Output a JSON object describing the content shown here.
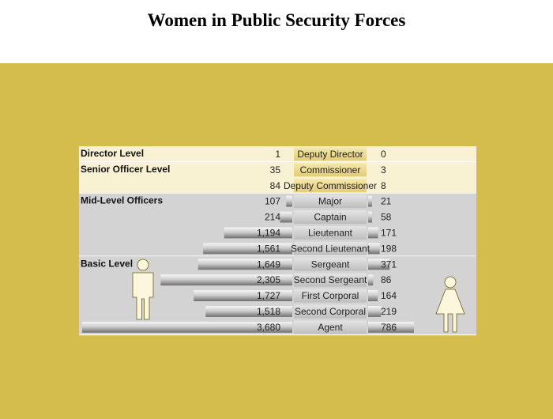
{
  "title": "Women in Public Security Forces",
  "colors": {
    "page_background": "#ffffff",
    "backdrop": "#d4bd4c",
    "cream_band": "#f8f1d2",
    "grey_band": "#d3d3d3",
    "bar_light": "#f4f4f4",
    "bar_dark": "#7d7d7d",
    "rank_box_gold": "#ecd98e",
    "rank_box_grey": "#cfcfcf",
    "figure": "#fcf6dc"
  },
  "chart_data": {
    "type": "bar",
    "layout": "butterfly",
    "series": [
      {
        "name": "",
        "side": "left",
        "icon": "man-icon"
      },
      {
        "name": "",
        "side": "right",
        "icon": "woman-icon"
      }
    ],
    "groups": [
      {
        "label": "Director Level",
        "band": "cream",
        "ranks": [
          {
            "rank": "Deputy Director",
            "men": 1,
            "women": 0
          }
        ]
      },
      {
        "label": "Senior Officer Level",
        "band": "cream",
        "ranks": [
          {
            "rank": "Commissioner",
            "men": 35,
            "women": 3
          },
          {
            "rank": "Deputy Commissioner",
            "men": 84,
            "women": 8
          }
        ]
      },
      {
        "label": "Mid-Level Officers",
        "band": "grey",
        "ranks": [
          {
            "rank": "Major",
            "men": 107,
            "women": 21
          },
          {
            "rank": "Captain",
            "men": 214,
            "women": 58
          },
          {
            "rank": "Lieutenant",
            "men": 1194,
            "women": 171
          },
          {
            "rank": "Second Lieutenant",
            "men": 1561,
            "women": 198
          }
        ]
      },
      {
        "label": "Basic Level",
        "band": "grey",
        "ranks": [
          {
            "rank": "Sergeant",
            "men": 1649,
            "women": 371
          },
          {
            "rank": "Second Sergeant",
            "men": 2305,
            "women": 86
          },
          {
            "rank": "First Corporal",
            "men": 1727,
            "women": 164
          },
          {
            "rank": "Second Corporal",
            "men": 1518,
            "women": 219
          },
          {
            "rank": "Agent",
            "men": 3680,
            "women": 786
          }
        ]
      }
    ],
    "display_values": {
      "men": [
        "1",
        "35",
        "84",
        "107",
        "214",
        "1,194",
        "1,561",
        "1,649",
        "2,305",
        "1,727",
        "1,518",
        "3,680"
      ],
      "women": [
        "0",
        "3",
        "8",
        "21",
        "58",
        "171",
        "198",
        "371",
        "86",
        "164",
        "219",
        "786"
      ]
    },
    "xlim_men": [
      0,
      3680
    ],
    "xlim_women": [
      0,
      3680
    ],
    "legend": "none",
    "grid": false
  }
}
